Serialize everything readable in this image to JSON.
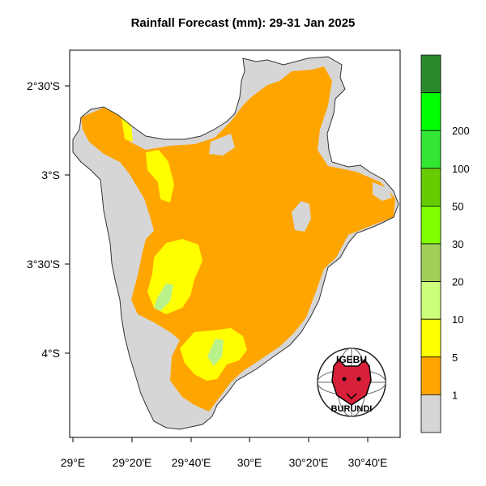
{
  "title": "Rainfall Forecast (mm): 29-31 Jan  2025",
  "lat_axis": [
    "2°30'S",
    "3°S",
    "3°30'S",
    "4°S"
  ],
  "lon_axis": [
    "29°E",
    "29°20'E",
    "29°40'E",
    "30°E",
    "30°20'E",
    "30°40'E"
  ],
  "legend": {
    "labels": [
      "1",
      "5",
      "10",
      "20",
      "30",
      "50",
      "100",
      "200"
    ],
    "colors": [
      "#d6d6d6",
      "#ffa500",
      "#ffff00",
      "#ccff7a",
      "#a0cf5a",
      "#7fff00",
      "#66cc00",
      "#33e633",
      "#00ff00",
      "#2a8a2a"
    ]
  },
  "logo": {
    "top_text": "IGEBU",
    "bottom_text": "BURUNDI"
  },
  "colors": {
    "no_rain": "#d6d6d6",
    "light": "#ffa500",
    "moderate": "#ffff00",
    "heavy": "#b9f28a"
  }
}
